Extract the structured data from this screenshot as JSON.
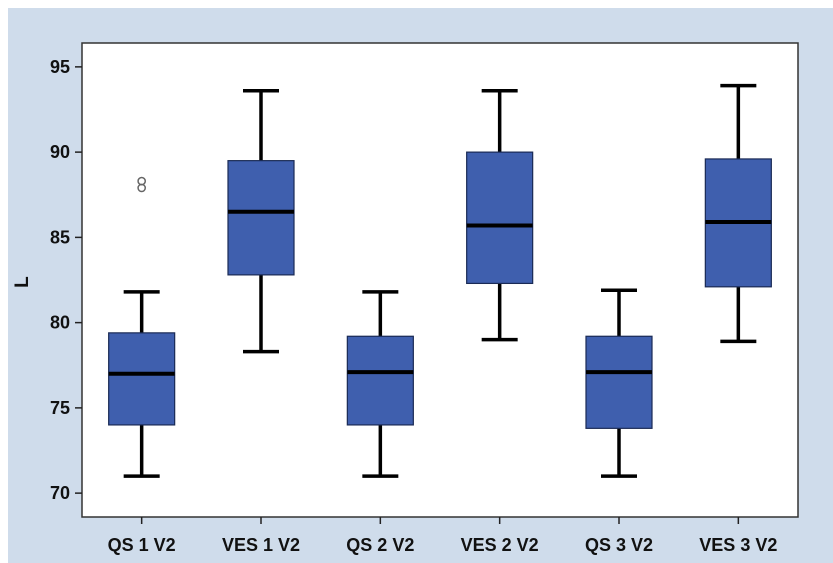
{
  "chart_data": {
    "type": "boxplot",
    "ylabel": "L",
    "xlabel": "",
    "ylim": [
      68.6,
      96.4
    ],
    "yticks": [
      70,
      75,
      80,
      85,
      90,
      95
    ],
    "categories": [
      "QS 1 V2",
      "VES 1 V2",
      "QS 2 V2",
      "VES 2 V2",
      "QS 3 V2",
      "VES 3 V2"
    ],
    "boxes": [
      {
        "label": "QS 1 V2",
        "whisker_low": 71.0,
        "q1": 74.0,
        "median": 77.0,
        "q3": 79.4,
        "whisker_high": 81.8,
        "outliers": [
          87.9,
          88.3
        ]
      },
      {
        "label": "VES 1 V2",
        "whisker_low": 78.3,
        "q1": 82.8,
        "median": 86.5,
        "q3": 89.5,
        "whisker_high": 93.6,
        "outliers": []
      },
      {
        "label": "QS 2 V2",
        "whisker_low": 71.0,
        "q1": 74.0,
        "median": 77.1,
        "q3": 79.2,
        "whisker_high": 81.8,
        "outliers": []
      },
      {
        "label": "VES 2 V2",
        "whisker_low": 79.0,
        "q1": 82.3,
        "median": 85.7,
        "q3": 90.0,
        "whisker_high": 93.6,
        "outliers": []
      },
      {
        "label": "QS 3 V2",
        "whisker_low": 71.0,
        "q1": 73.8,
        "median": 77.1,
        "q3": 79.2,
        "whisker_high": 81.9,
        "outliers": []
      },
      {
        "label": "VES 3 V2",
        "whisker_low": 78.9,
        "q1": 82.1,
        "median": 85.9,
        "q3": 89.6,
        "whisker_high": 93.9,
        "outliers": []
      }
    ],
    "colors": {
      "box_fill": "#3f5fae",
      "box_stroke": "#1a2a55",
      "median": "#000000",
      "whisker": "#000000",
      "background": "#cfdceb",
      "plot_area": "#ffffff",
      "outlier_marker": "#666666"
    },
    "grid": false
  }
}
